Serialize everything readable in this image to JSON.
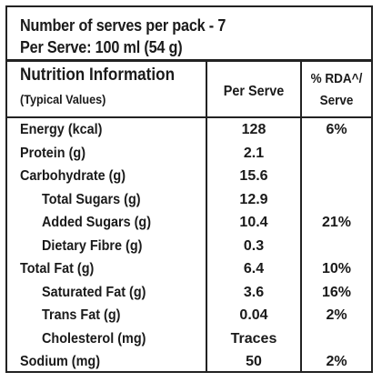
{
  "serves": {
    "line1": "Number of serves per pack - 7",
    "line2": "Per Serve: 100 ml (54 g)"
  },
  "header": {
    "title": "Nutrition Information",
    "subtitle": "(Typical Values)",
    "per_serve": "Per Serve",
    "rda_line1": "% RDA^/",
    "rda_line2": "Serve"
  },
  "rows": [
    {
      "name": "Energy (kcal)",
      "value": "128",
      "rda": "6%"
    },
    {
      "name": "Protein (g)",
      "value": "2.1",
      "rda": ""
    },
    {
      "name": "Carbohydrate (g)",
      "value": "15.6",
      "rda": ""
    },
    {
      "name": "Total Sugars (g)",
      "value": "12.9",
      "rda": ""
    },
    {
      "name": "Added Sugars (g)",
      "value": "10.4",
      "rda": "21%"
    },
    {
      "name": "Dietary Fibre (g)",
      "value": "0.3",
      "rda": ""
    },
    {
      "name": "Total Fat (g)",
      "value": "6.4",
      "rda": "10%"
    },
    {
      "name": "Saturated Fat (g)",
      "value": "3.6",
      "rda": "16%"
    },
    {
      "name": "Trans Fat (g)",
      "value": "0.04",
      "rda": "2%"
    },
    {
      "name": "Cholesterol (mg)",
      "value": "Traces",
      "rda": ""
    },
    {
      "name": "Sodium (mg)",
      "value": "50",
      "rda": "2%"
    }
  ]
}
